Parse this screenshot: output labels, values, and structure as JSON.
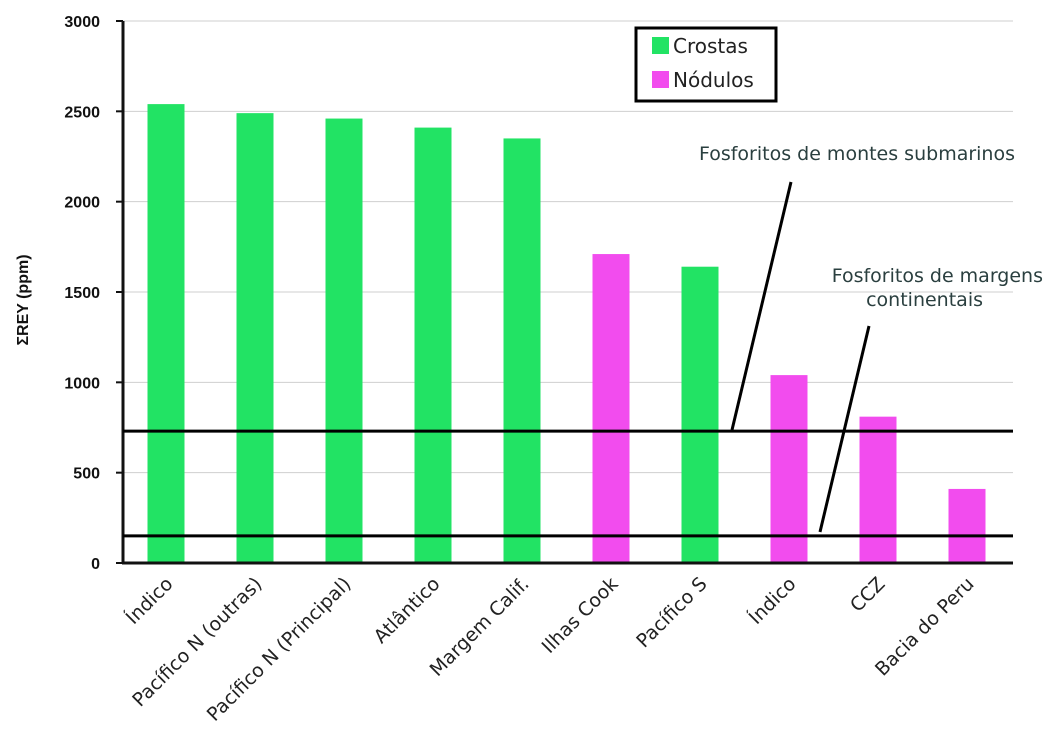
{
  "chart_data": {
    "type": "bar",
    "ylabel": "ΣREY (ppm)",
    "ylim": [
      0,
      3000
    ],
    "yticks": [
      0,
      500,
      1000,
      1500,
      2000,
      2500,
      3000
    ],
    "grid": true,
    "categories": [
      "Índico",
      "Pacífico N (outras)",
      "Pacífico N (Principal)",
      "Atlântico",
      "Margem Calif.",
      "Ilhas Cook",
      "Pacífico S",
      "Índico",
      "CCZ",
      "Bacia do Peru"
    ],
    "values": [
      2540,
      2490,
      2460,
      2410,
      2350,
      1710,
      1640,
      1040,
      810,
      410
    ],
    "groups": [
      "Crostas",
      "Crostas",
      "Crostas",
      "Crostas",
      "Crostas",
      "Nódulos",
      "Crostas",
      "Nódulos",
      "Nódulos",
      "Nódulos"
    ],
    "legend": {
      "position": "top-right",
      "items": [
        {
          "name": "Crostas",
          "color": "#22e364"
        },
        {
          "name": "Nódulos",
          "color": "#f24cee"
        }
      ]
    },
    "reference_lines": [
      {
        "value": 730,
        "label": [
          "Fosforitos de montes submarinos"
        ]
      },
      {
        "value": 150,
        "label": [
          "Fosforitos de margens",
          "continentais"
        ]
      }
    ]
  }
}
